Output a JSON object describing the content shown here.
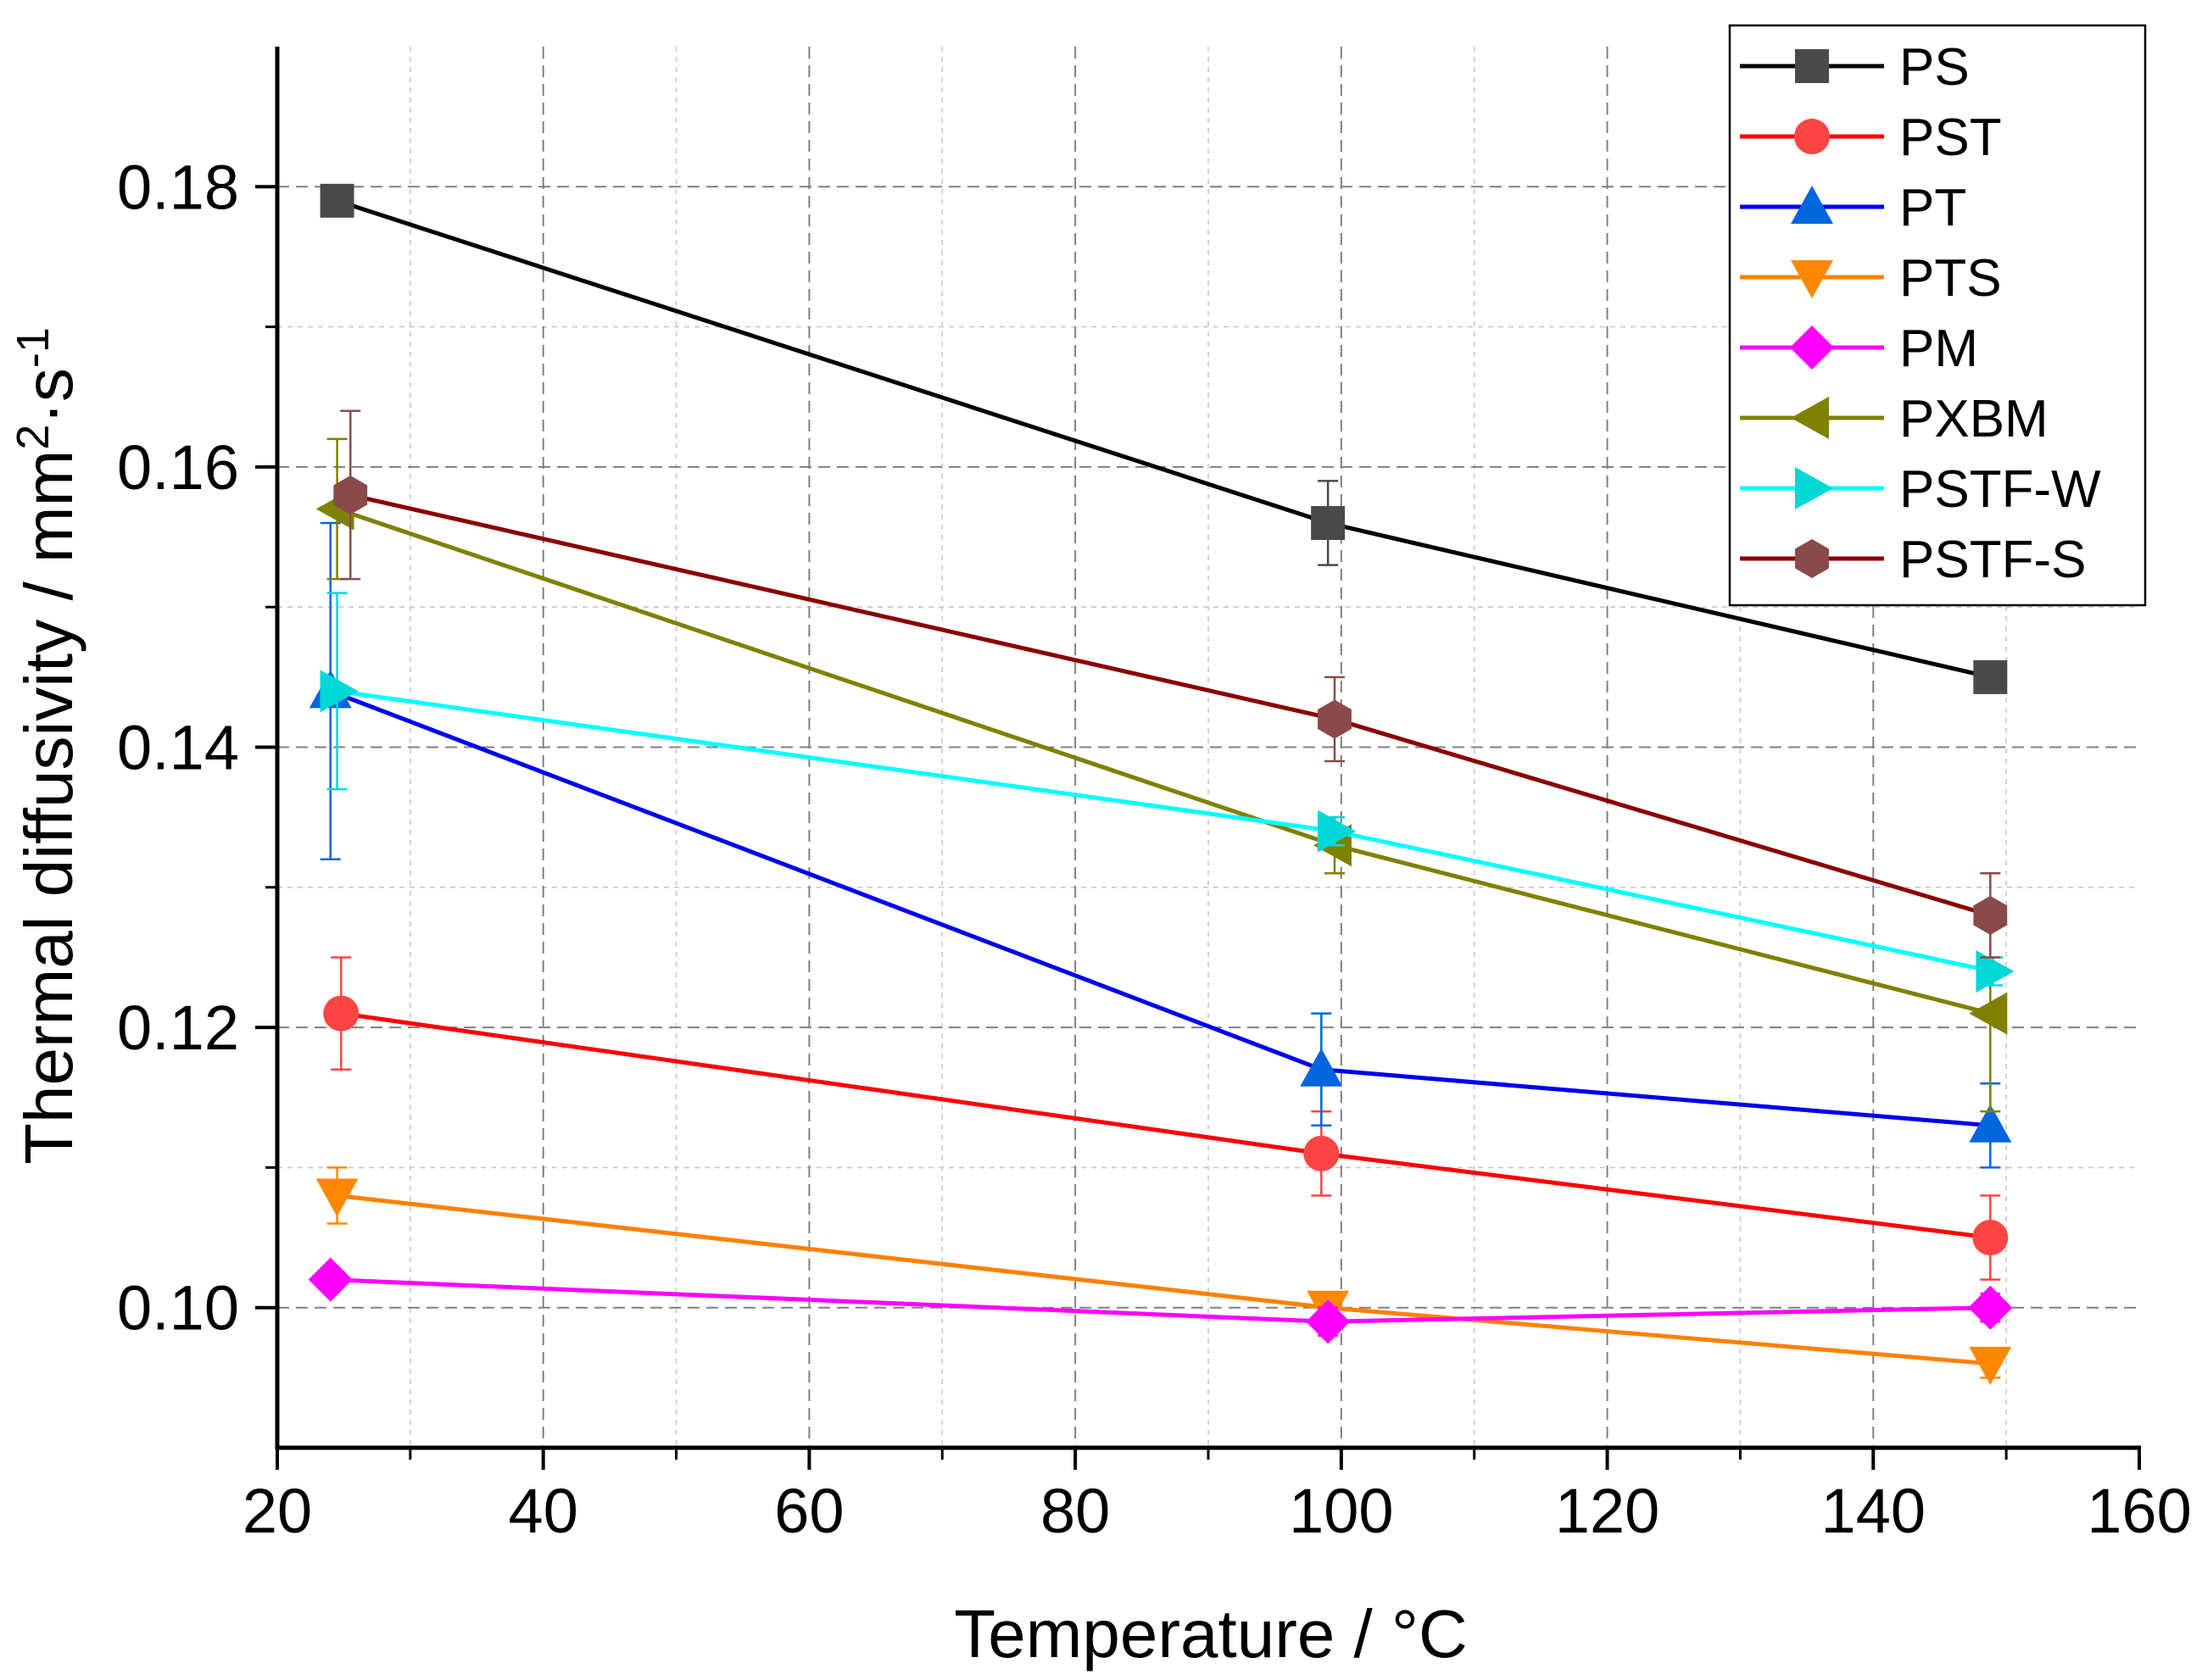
{
  "chart_data": {
    "type": "line",
    "xlabel": "Temperature / °C",
    "ylabel_main": "Thermal diffusivity / mm",
    "ylabel_sup1": "2",
    "ylabel_mid": "·s",
    "ylabel_sup2": "-1",
    "xlim": [
      20,
      160
    ],
    "ylim": [
      0.09,
      0.19
    ],
    "x_ticks": [
      20,
      40,
      60,
      80,
      100,
      120,
      140,
      160
    ],
    "x_tick_labels": [
      "20",
      "40",
      "60",
      "80",
      "100",
      "120",
      "140",
      "160"
    ],
    "y_ticks": [
      0.1,
      0.12,
      0.14,
      0.16,
      0.18
    ],
    "y_tick_labels": [
      "0.10",
      "0.12",
      "0.14",
      "0.16",
      "0.18"
    ],
    "grid": true,
    "legend_position": "top-right",
    "series": [
      {
        "name": "PS",
        "color": "#000000",
        "fill": "#4a4a4a",
        "marker": "square",
        "x": [
          24.5,
          99.0,
          148.8
        ],
        "y": [
          0.179,
          0.156,
          0.145
        ],
        "err": [
          0,
          0.003,
          0
        ]
      },
      {
        "name": "PST",
        "color": "#ff0000",
        "fill": "#ff4444",
        "marker": "circle",
        "x": [
          24.8,
          98.5,
          148.8
        ],
        "y": [
          0.121,
          0.111,
          0.105
        ],
        "err": [
          0.004,
          0.003,
          0.003
        ]
      },
      {
        "name": "PT",
        "color": "#0000ee",
        "fill": "#0066dd",
        "marker": "triangle-up",
        "x": [
          24.0,
          98.5,
          148.8
        ],
        "y": [
          0.144,
          0.117,
          0.113
        ],
        "err": [
          0.012,
          0.004,
          0.003
        ]
      },
      {
        "name": "PTS",
        "color": "#ff8000",
        "fill": "#ff8800",
        "marker": "triangle-down",
        "x": [
          24.5,
          99.0,
          148.8
        ],
        "y": [
          0.108,
          0.1,
          0.096
        ],
        "err": [
          0.002,
          0.001,
          0.001
        ]
      },
      {
        "name": "PM",
        "color": "#ff00ff",
        "fill": "#ff00ff",
        "marker": "diamond",
        "x": [
          24.0,
          99.0,
          148.8
        ],
        "y": [
          0.102,
          0.099,
          0.1
        ],
        "err": [
          0,
          0.001,
          0.001
        ]
      },
      {
        "name": "PXBM",
        "color": "#808000",
        "fill": "#808000",
        "marker": "triangle-left",
        "x": [
          24.5,
          99.5,
          148.8
        ],
        "y": [
          0.157,
          0.133,
          0.121
        ],
        "err": [
          0.005,
          0.002,
          0.007
        ]
      },
      {
        "name": "PSTF-W",
        "color": "#00ffff",
        "fill": "#00d8d8",
        "marker": "triangle-right",
        "x": [
          24.5,
          99.5,
          149.0
        ],
        "y": [
          0.144,
          0.134,
          0.124
        ],
        "err": [
          0.007,
          0.001,
          0.001
        ]
      },
      {
        "name": "PSTF-S",
        "color": "#8b0000",
        "fill": "#8b4a4a",
        "marker": "hexagon",
        "x": [
          25.5,
          99.5,
          148.8
        ],
        "y": [
          0.158,
          0.142,
          0.128
        ],
        "err": [
          0.006,
          0.003,
          0.003
        ]
      }
    ]
  }
}
